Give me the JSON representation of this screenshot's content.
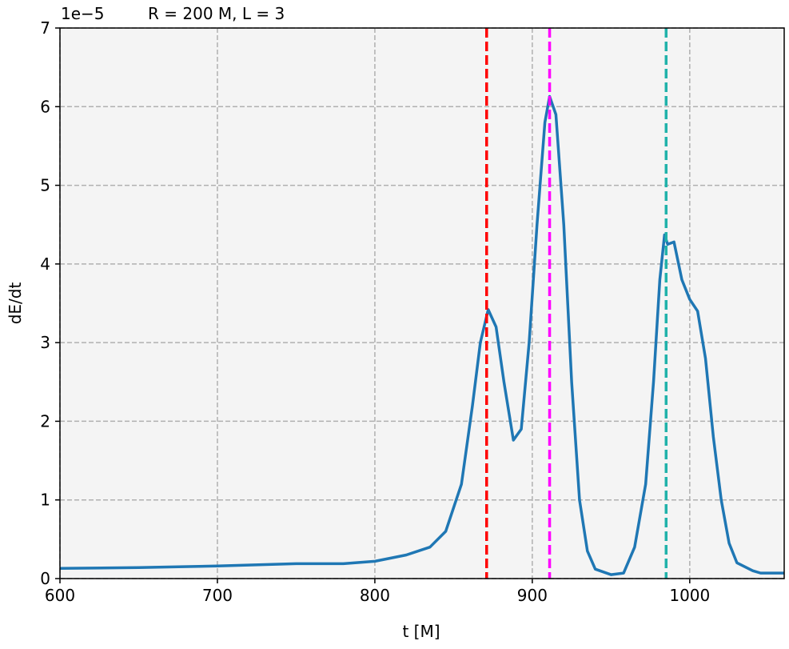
{
  "chart_data": {
    "type": "line",
    "title": "R = 200 M, L = 3",
    "offset_text": "1e−5",
    "x_label": "t [M]",
    "y_label": "dE/dt",
    "x": [
      600,
      650,
      700,
      750,
      780,
      800,
      820,
      835,
      845,
      855,
      862,
      867,
      872,
      877,
      882,
      888,
      893,
      898,
      903,
      908,
      911,
      915,
      920,
      925,
      930,
      935,
      940,
      950,
      958,
      965,
      972,
      977,
      981,
      984,
      986,
      990,
      995,
      1000,
      1005,
      1010,
      1015,
      1020,
      1025,
      1030,
      1040,
      1045,
      1060
    ],
    "series": [
      {
        "color": "#1f77b4",
        "values": [
          0.13,
          0.14,
          0.16,
          0.19,
          0.19,
          0.22,
          0.3,
          0.4,
          0.6,
          1.2,
          2.2,
          3.0,
          3.42,
          3.2,
          2.5,
          1.76,
          1.9,
          3.0,
          4.5,
          5.8,
          6.13,
          5.9,
          4.5,
          2.5,
          1.0,
          0.35,
          0.12,
          0.05,
          0.07,
          0.4,
          1.2,
          2.5,
          3.8,
          4.37,
          4.25,
          4.28,
          3.8,
          3.55,
          3.4,
          2.8,
          1.8,
          1.0,
          0.45,
          0.2,
          0.1,
          0.07,
          0.07
        ]
      }
    ],
    "vlines": [
      {
        "x": 871,
        "color": "#ff0000"
      },
      {
        "x": 911,
        "color": "#ff00ff"
      },
      {
        "x": 985,
        "color": "#20b2aa"
      }
    ],
    "xlim": [
      600,
      1060
    ],
    "ylim": [
      0,
      7
    ],
    "xticks": [
      600,
      700,
      800,
      900,
      1000
    ],
    "yticks": [
      0,
      1,
      2,
      3,
      4,
      5,
      6,
      7
    ],
    "grid": true,
    "background": "#f4f4f4"
  }
}
